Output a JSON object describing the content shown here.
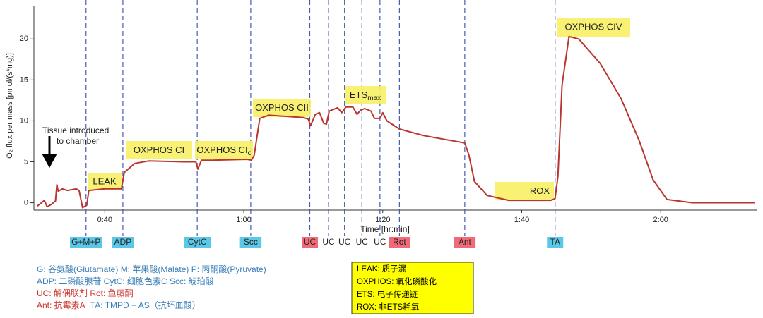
{
  "chart_data": {
    "type": "line",
    "ylabel": "O₂ flux per mass [pmol/(s*mg)]",
    "xlabel": "Time [hr:min]",
    "xlim": [
      29.8,
      133.7
    ],
    "ylim": [
      -0.9,
      23.9
    ],
    "xticks": [
      {
        "value": 40,
        "label": "0:40"
      },
      {
        "value": 60,
        "label": "1:00"
      },
      {
        "value": 80,
        "label": "1:20"
      },
      {
        "value": 100,
        "label": "1:40"
      },
      {
        "value": 120,
        "label": "2:00"
      }
    ],
    "yticks": [
      0,
      5,
      10,
      15,
      20
    ],
    "color": "#b8362f",
    "x": [
      30.3,
      30.9,
      31.3,
      31.7,
      32.3,
      32.9,
      33.1,
      33.3,
      33.9,
      34.6,
      35.9,
      36.3,
      36.8,
      37.4,
      37.7,
      40.0,
      42.4,
      42.8,
      44.3,
      46.3,
      51.4,
      53.1,
      53.4,
      53.9,
      55.4,
      60.5,
      61.1,
      61.5,
      62.3,
      63.6,
      68.6,
      69.3,
      69.6,
      70.3,
      70.9,
      71.5,
      71.9,
      72.3,
      73.5,
      74.1,
      74.7,
      75.7,
      76.3,
      76.8,
      77.4,
      78.3,
      78.8,
      79.6,
      80.0,
      80.6,
      82.4,
      85.9,
      91.8,
      92.4,
      93.2,
      95.0,
      98.1,
      104.2,
      104.8,
      105.2,
      105.8,
      106.8,
      108.2,
      111.3,
      114.3,
      116.9,
      118.9,
      120.9,
      124.5,
      133.6
    ],
    "values": [
      -0.4,
      0,
      0.3,
      -0.5,
      -0.2,
      0.2,
      2.2,
      1.4,
      1.7,
      1.5,
      1.7,
      1.5,
      -0.6,
      -0.3,
      1.5,
      1.7,
      1.7,
      3.7,
      4.8,
      5.1,
      5.0,
      5.0,
      4.1,
      5.2,
      5.2,
      5.3,
      5.2,
      5.8,
      10.3,
      10.7,
      10.4,
      10.2,
      9.4,
      10.8,
      11.0,
      9.7,
      9.6,
      11.2,
      11.6,
      11.0,
      11.7,
      11.7,
      10.8,
      11.3,
      11.5,
      11.2,
      10.3,
      10.3,
      11.0,
      10.0,
      9.0,
      8.2,
      7.3,
      5.8,
      2.6,
      0.9,
      0.3,
      0.3,
      0.5,
      3.2,
      14.4,
      20.3,
      20.0,
      17.0,
      12.7,
      7.6,
      2.8,
      0.4,
      0,
      0
    ],
    "events": [
      {
        "x": 37.3,
        "label": "G+M+P",
        "color": "#5bc8e8"
      },
      {
        "x": 42.6,
        "label": "ADP",
        "color": "#5bc8e8"
      },
      {
        "x": 53.3,
        "label": "CytC",
        "color": "#5bc8e8"
      },
      {
        "x": 61.0,
        "label": "Scc",
        "color": "#5bc8e8"
      },
      {
        "x": 69.5,
        "label": "UC",
        "color": "#f06a78"
      },
      {
        "x": 72.2,
        "label": "UC"
      },
      {
        "x": 74.5,
        "label": "UC"
      },
      {
        "x": 77.0,
        "label": "UC"
      },
      {
        "x": 79.6,
        "label": "UC"
      },
      {
        "x": 82.4,
        "label": "Rot",
        "color": "#f06a78"
      },
      {
        "x": 91.8,
        "label": "Ant",
        "color": "#f06a78"
      },
      {
        "x": 104.8,
        "label": "TA",
        "color": "#5bc8e8"
      }
    ],
    "event_line_color": "#4a5bb0",
    "annotation_color": "#f7f064",
    "annotations": [
      {
        "text": "LEAK"
      },
      {
        "text": "OXPHOS CI"
      },
      {
        "text": "OXPHOS CI",
        "sub": "c"
      },
      {
        "text": "OXPHOS CII"
      },
      {
        "text": "ETS",
        "sub": "max"
      },
      {
        "text": "ROX"
      },
      {
        "text": "OXPHOS CIV"
      }
    ],
    "note": [
      "Tissue introduced",
      "to chamber"
    ]
  },
  "key": {
    "abbreviations": [
      [
        {
          "text": "G: 谷氨酸(Glutamate)   M: 苹果酸(Malate)   P: 丙酮酸(Pyruvate)",
          "color": "#3a7fb8"
        }
      ],
      [
        {
          "text": "ADP: 二磷酸腺苷   CytC: 细胞色素C   Scc: 琥珀酸",
          "color": "#3a7fb8"
        }
      ],
      [
        {
          "text": "UC: 解偶联剂  Rot: 鱼藤酮",
          "color": "#c8342c"
        }
      ],
      [
        {
          "text": "Ant: 抗霉素A",
          "color": "#c8342c"
        },
        {
          "text": "TA: TMPD + AS（抗坏血酸）",
          "color": "#3a7fb8"
        }
      ]
    ],
    "terms": [
      "LEAK: 质子漏",
      "OXPHOS: 氧化磷酸化",
      "ETS: 电子传递链",
      "ROX: 非ETS耗氧"
    ],
    "terms_color": "#ffff00"
  }
}
